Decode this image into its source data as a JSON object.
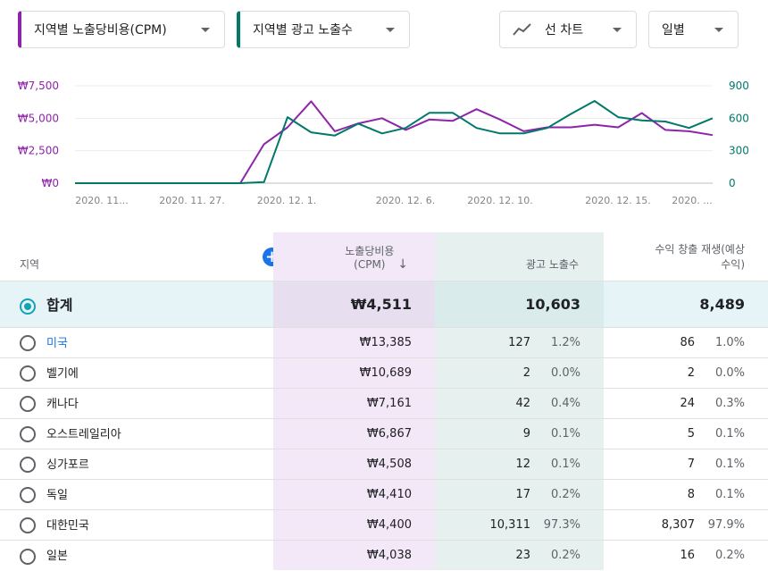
{
  "dropdowns": {
    "metric1": "지역별 노출당비용(CPM)",
    "metric2": "지역별 광고 노출수",
    "chart_type": "선 차트",
    "period": "일별"
  },
  "colors": {
    "purple": "#8e24aa",
    "teal": "#00796b",
    "accent": "#1a73e8"
  },
  "chart_data": {
    "type": "line",
    "x_ticks": [
      "2020. 11...",
      "2020. 11. 27.",
      "2020. 12. 1.",
      "2020. 12. 6.",
      "2020. 12. 10.",
      "2020. 12. 15.",
      "2020. ..."
    ],
    "left_axis_ticks": [
      "₩7,500",
      "₩5,000",
      "₩2,500",
      "₩0"
    ],
    "right_axis_ticks": [
      "900",
      "600",
      "300",
      "0"
    ],
    "ylim_left": [
      0,
      7500
    ],
    "ylim_right": [
      0,
      900
    ],
    "grid": true,
    "series": [
      {
        "axis": "left",
        "color": "#8e24aa",
        "values": [
          0,
          0,
          0,
          0,
          0,
          0,
          0,
          0,
          3000,
          4300,
          6300,
          4000,
          4600,
          5000,
          4100,
          4900,
          4800,
          5700,
          4900,
          4000,
          4300,
          4300,
          4500,
          4300,
          5400,
          4100,
          4000,
          3700
        ]
      },
      {
        "axis": "right",
        "color": "#00796b",
        "values": [
          0,
          0,
          0,
          0,
          0,
          0,
          0,
          0,
          10,
          610,
          470,
          440,
          550,
          460,
          510,
          650,
          650,
          510,
          460,
          460,
          510,
          640,
          760,
          610,
          580,
          570,
          510,
          600
        ]
      }
    ]
  },
  "table": {
    "headers": {
      "region": "지역",
      "cpm": "노출당비용\n(CPM)",
      "impressions": "광고 노출수",
      "revenue": "수익 창출 재생(예상\n수익)"
    },
    "total": {
      "label": "합계",
      "cpm": "₩4,511",
      "impressions": "10,603",
      "revenue": "8,489"
    },
    "rows": [
      {
        "region": "미국",
        "cpm": "₩13,385",
        "imp": "127",
        "imp_pct": "1.2%",
        "rev": "86",
        "rev_pct": "1.0%",
        "link": true
      },
      {
        "region": "벨기에",
        "cpm": "₩10,689",
        "imp": "2",
        "imp_pct": "0.0%",
        "rev": "2",
        "rev_pct": "0.0%"
      },
      {
        "region": "캐나다",
        "cpm": "₩7,161",
        "imp": "42",
        "imp_pct": "0.4%",
        "rev": "24",
        "rev_pct": "0.3%"
      },
      {
        "region": "오스트레일리아",
        "cpm": "₩6,867",
        "imp": "9",
        "imp_pct": "0.1%",
        "rev": "5",
        "rev_pct": "0.1%"
      },
      {
        "region": "싱가포르",
        "cpm": "₩4,508",
        "imp": "12",
        "imp_pct": "0.1%",
        "rev": "7",
        "rev_pct": "0.1%"
      },
      {
        "region": "독일",
        "cpm": "₩4,410",
        "imp": "17",
        "imp_pct": "0.2%",
        "rev": "8",
        "rev_pct": "0.1%"
      },
      {
        "region": "대한민국",
        "cpm": "₩4,400",
        "imp": "10,311",
        "imp_pct": "97.3%",
        "rev": "8,307",
        "rev_pct": "97.9%"
      },
      {
        "region": "일본",
        "cpm": "₩4,038",
        "imp": "23",
        "imp_pct": "0.2%",
        "rev": "16",
        "rev_pct": "0.2%"
      }
    ]
  }
}
